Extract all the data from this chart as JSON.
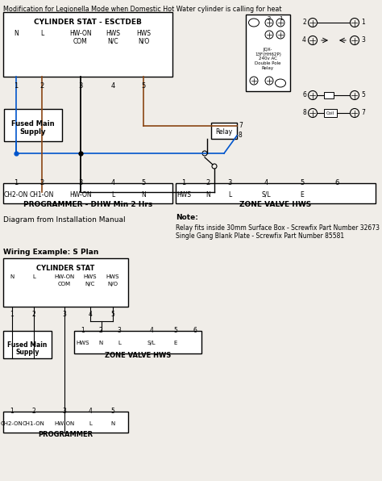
{
  "title": "Modification for Legionella Mode when Domestic Hot Water cylinder is calling for heat",
  "bg_color": "#f0ede8",
  "line_color": "#000000",
  "blue_color": "#0055cc",
  "brown_color": "#8B4513",
  "note_title": "Note:",
  "note_line1": "Relay fits inside 30mm Surface Box - Screwfix Part Number 32673",
  "note_line2": "Single Gang Blank Plate - Screwfix Part Number 85581",
  "diagram_from": "Diagram from Installation Manual",
  "wiring_example": "Wiring Example: S Plan"
}
